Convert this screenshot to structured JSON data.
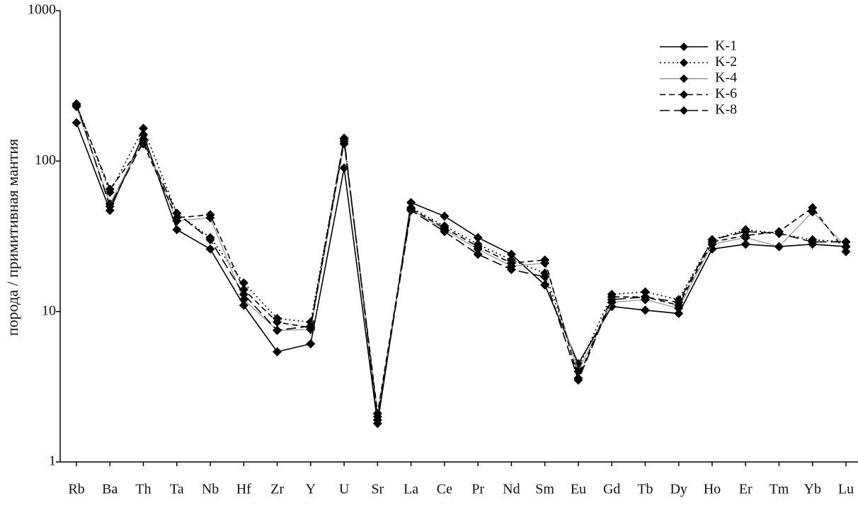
{
  "chart_data": {
    "type": "line",
    "y_label": "порода / примитивная мантия",
    "log_scale": true,
    "grid": false,
    "legend_position": "top-right",
    "categories": [
      "Rb",
      "Ba",
      "Th",
      "Ta",
      "Nb",
      "Hf",
      "Zr",
      "Y",
      "U",
      "Sr",
      "La",
      "Ce",
      "Pr",
      "Nd",
      "Sm",
      "Eu",
      "Gd",
      "Tb",
      "Dy",
      "Ho",
      "Er",
      "Tm",
      "Yb",
      "Lu"
    ],
    "ylim": [
      1,
      1000
    ],
    "yticks": [
      1,
      10,
      100,
      1000
    ],
    "series": [
      {
        "name": "K-1",
        "color": "#000000",
        "line_style": "solid",
        "values": [
          180,
          47,
          150,
          35,
          26,
          11,
          5.4,
          6.1,
          90,
          1.8,
          53,
          43,
          31,
          24,
          15,
          4.5,
          10.8,
          10.2,
          9.7,
          26,
          28,
          27,
          28,
          27
        ]
      },
      {
        "name": "K-2",
        "color": "#000000",
        "line_style": "dotted",
        "values": [
          240,
          62,
          165,
          45,
          31,
          15.5,
          9,
          8.5,
          140,
          2.0,
          49,
          37,
          28,
          22,
          18,
          4.2,
          13,
          13.5,
          12,
          30,
          35,
          33,
          30,
          29
        ]
      },
      {
        "name": "K-4",
        "color": "#999999",
        "line_style": "solid",
        "values": [
          230,
          52,
          140,
          40,
          42,
          12,
          7.5,
          7.6,
          130,
          2.1,
          48,
          35,
          26,
          20,
          21,
          4.0,
          11.5,
          12,
          10.5,
          28,
          31,
          27,
          46,
          27
        ]
      },
      {
        "name": "K-6",
        "color": "#000000",
        "line_style": "dashed",
        "values": [
          235,
          65,
          130,
          42,
          44,
          14,
          8.5,
          7.8,
          135,
          2.1,
          48,
          36,
          27,
          21,
          22,
          3.6,
          12.5,
          12.5,
          11,
          29,
          32,
          34,
          49,
          25
        ]
      },
      {
        "name": "K-8",
        "color": "#000000",
        "line_style": "long-dashed",
        "values": [
          240,
          50,
          135,
          45,
          30,
          13,
          7.5,
          8,
          142,
          1.9,
          47,
          34,
          24,
          19,
          17,
          3.5,
          12,
          12.5,
          11.5,
          30,
          34,
          33,
          29,
          29
        ]
      }
    ]
  }
}
